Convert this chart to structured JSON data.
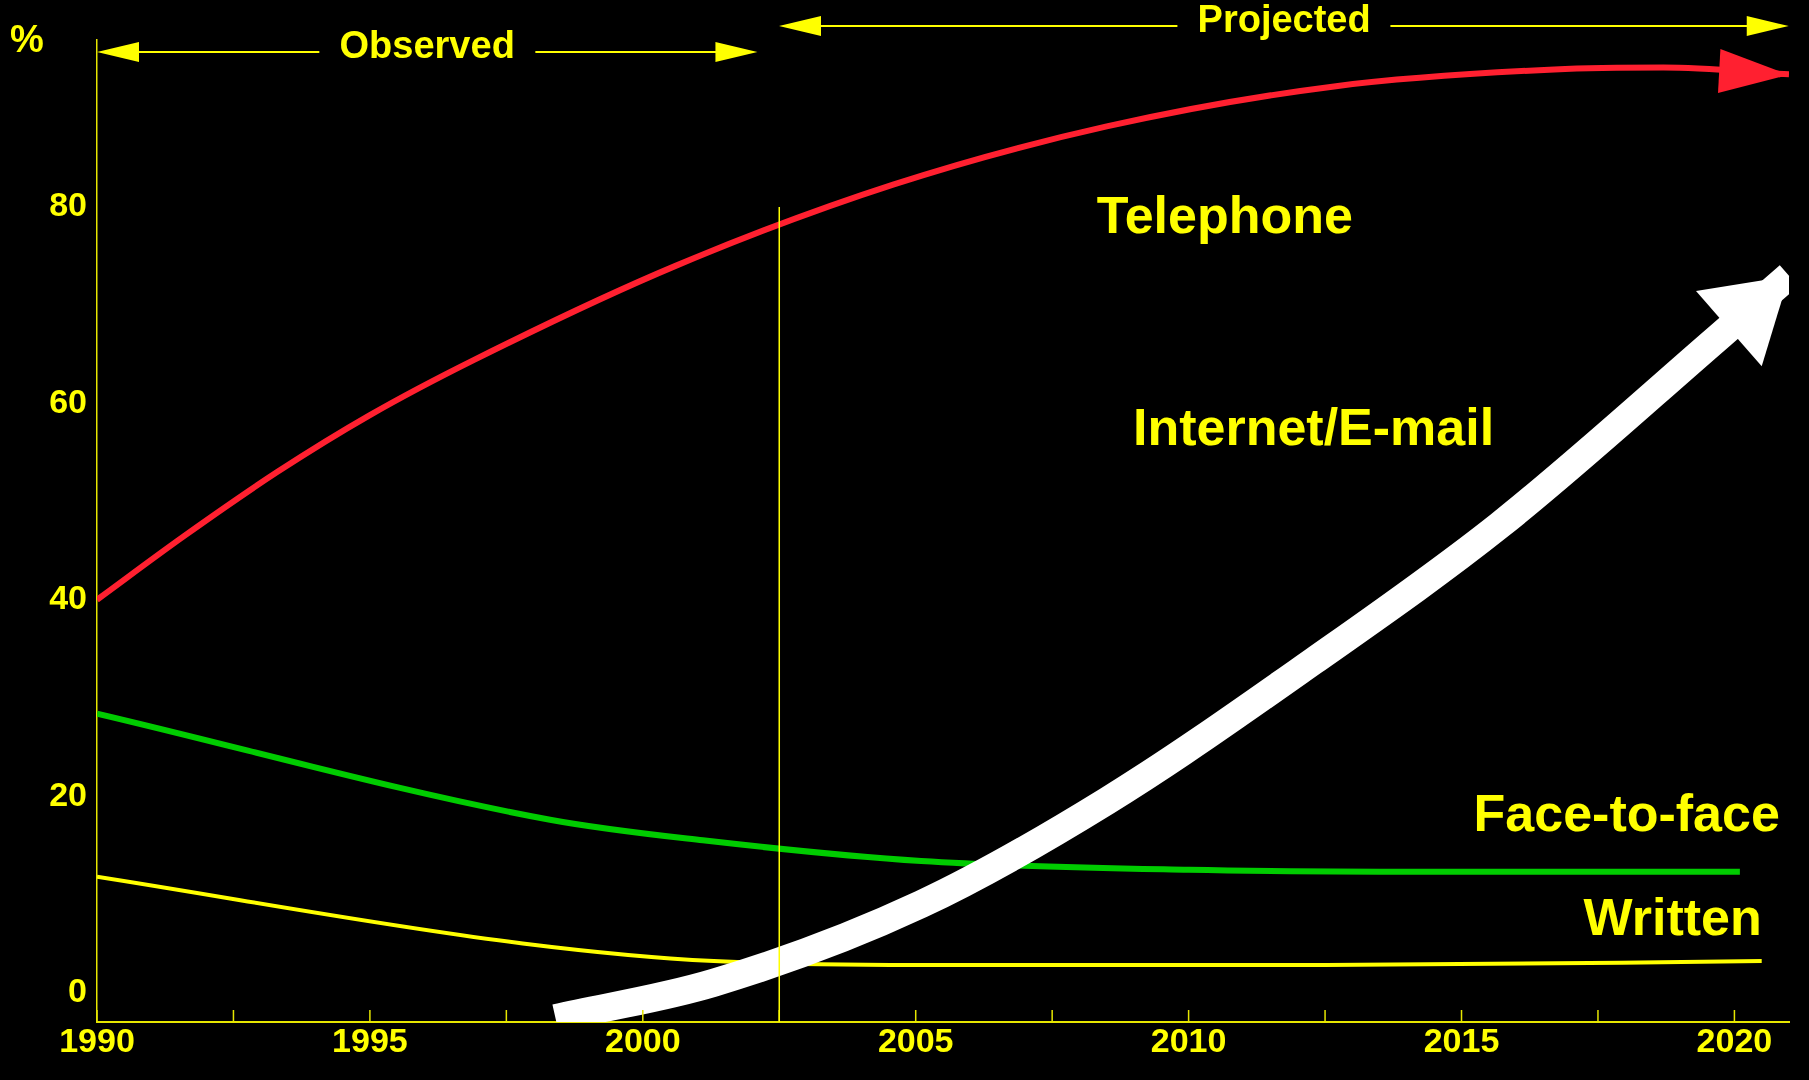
{
  "chart_data": {
    "type": "line",
    "ylabel": "%",
    "xlim": [
      1990,
      2021
    ],
    "ylim": [
      -3,
      97
    ],
    "xticks": [
      1990,
      {
        "value": 1992.5,
        "label": null
      },
      1995,
      {
        "value": 1997.5,
        "label": null
      },
      2000,
      {
        "value": 2002.5,
        "label": null
      },
      2005,
      {
        "value": 2007.5,
        "label": null
      },
      2010,
      {
        "value": 2012.5,
        "label": null
      },
      2015,
      {
        "value": 2017.5,
        "label": null
      },
      2020
    ],
    "yticks": [
      0,
      20,
      40,
      60,
      80
    ],
    "grid": false,
    "legend": false,
    "marker": "none",
    "line_style": "solid",
    "series": [
      {
        "name": "Telephone",
        "color": "#ff2030",
        "x": [
          1990,
          1991.6,
          1993.3,
          1995,
          1996.9,
          2000.6,
          2004.6,
          2008.5,
          2012.7,
          2016.7,
          2018.7,
          2021
        ],
        "values": [
          40,
          46.5,
          53,
          58.8,
          64.4,
          74,
          82.3,
          88.2,
          92.3,
          94,
          94.2,
          93.5
        ]
      },
      {
        "name": "Internet/E-mail",
        "color": "#ffffff",
        "x": [
          1998.4,
          2001.3,
          2005.1,
          2008.5,
          2012.3,
          2015.7,
          2019.7,
          2021
        ],
        "values": [
          -2.6,
          1,
          9,
          19.5,
          33.8,
          47.6,
          66.7,
          73
        ]
      },
      {
        "name": "Face-to-face",
        "color": "#00cc00",
        "x": [
          1990,
          1998.3,
          2001.1,
          2005.1,
          2010,
          2014.9,
          2020.1
        ],
        "values": [
          28.4,
          17.6,
          15.5,
          13.4,
          12.5,
          12.3,
          12.3
        ]
      },
      {
        "name": "Written",
        "color": "#ffff00",
        "x": [
          1990,
          1997.8,
          2001.3,
          2005.5,
          2012.5,
          2020.5
        ],
        "values": [
          11.8,
          5,
          3.2,
          2.8,
          2.8,
          3.2
        ]
      }
    ],
    "ref_lines": [
      {
        "axis": "x",
        "value": 2002.5,
        "color": "#ffff00"
      }
    ],
    "annotations": [
      "Observed",
      "Projected"
    ]
  }
}
